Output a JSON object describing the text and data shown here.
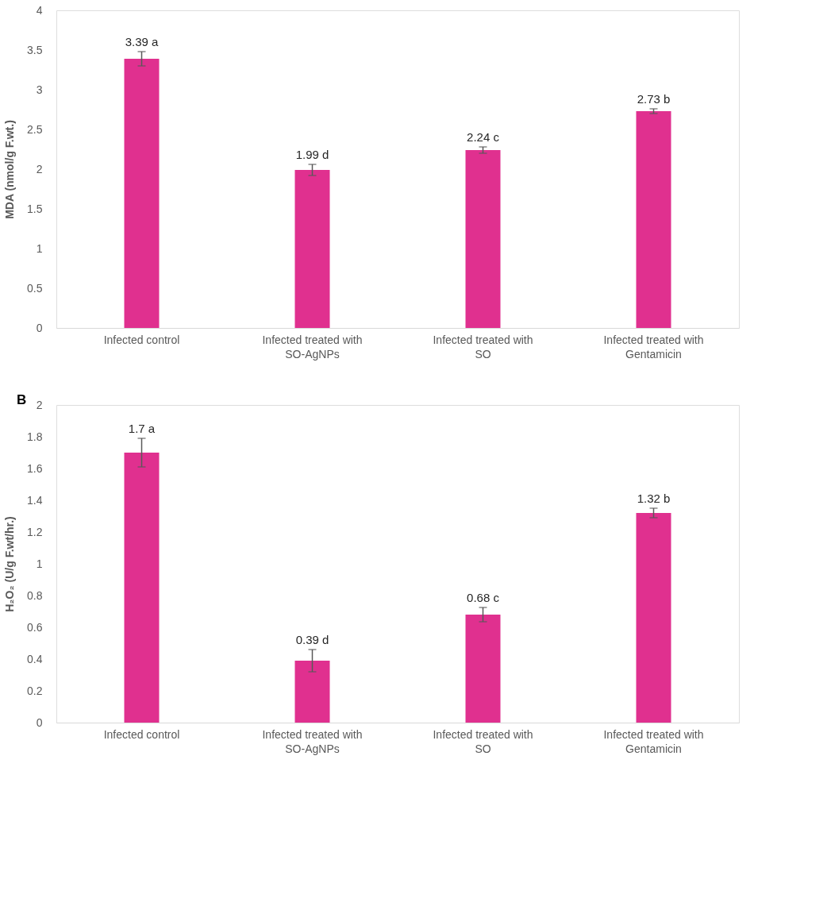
{
  "chart_data": [
    {
      "type": "bar",
      "ylabel": "MDA (nmol/g F.wt.)",
      "categories": [
        "Infected control",
        "Infected  treated with\nSO-AgNPs",
        "Infected  treated with\nSO",
        "Infected  treated with\nGentamicin"
      ],
      "values": [
        3.39,
        1.99,
        2.24,
        2.73
      ],
      "errors": [
        0.09,
        0.07,
        0.04,
        0.03
      ],
      "value_labels": [
        "3.39 a",
        "1.99 d",
        "2.24 c",
        "2.73 b"
      ],
      "color": "#e0308f",
      "ylim": [
        0,
        4
      ],
      "yticks": [
        0,
        0.5,
        1,
        1.5,
        2,
        2.5,
        3,
        3.5,
        4
      ],
      "grid": false
    },
    {
      "type": "bar",
      "ylabel": "H₂O₂ (U/g F.wt/hr.)",
      "annotations": [
        "B"
      ],
      "categories": [
        "Infected control",
        "Infected  treated with\nSO-AgNPs",
        "Infected  treated with\nSO",
        "Infected  treated with\nGentamicin"
      ],
      "values": [
        1.7,
        0.39,
        0.68,
        1.32
      ],
      "errors": [
        0.09,
        0.07,
        0.045,
        0.03
      ],
      "value_labels": [
        "1.7 a",
        "0.39 d",
        "0.68 c",
        "1.32 b"
      ],
      "color": "#e0308f",
      "ylim": [
        0,
        2
      ],
      "yticks": [
        0,
        0.2,
        0.4,
        0.6,
        0.8,
        1,
        1.2,
        1.4,
        1.6,
        1.8,
        2
      ],
      "grid": false
    }
  ]
}
